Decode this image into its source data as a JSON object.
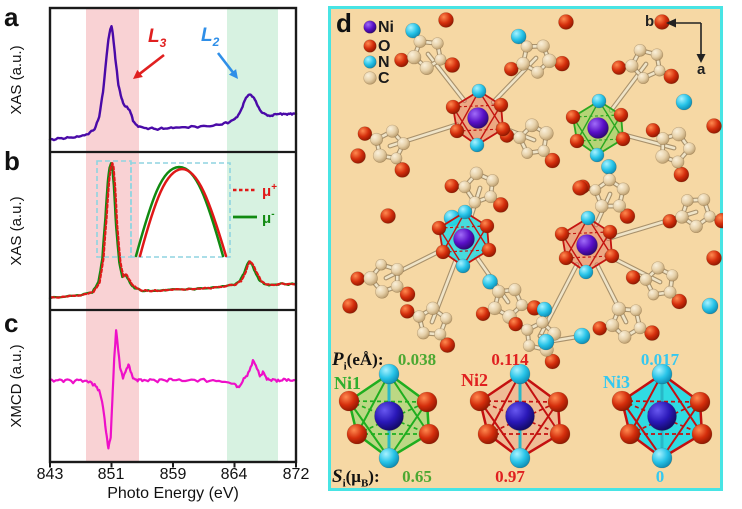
{
  "left_charts": {
    "panels": [
      {
        "letter": "a",
        "ylabel": "XAS (a.u.)"
      },
      {
        "letter": "b",
        "ylabel": "XAS (a.u.)"
      },
      {
        "letter": "c",
        "ylabel": "XMCD (a.u.)"
      }
    ],
    "xlabel": "Photo Energy (eV)",
    "xticks": [
      "843",
      "851",
      "859",
      "864",
      "872"
    ],
    "annotations": {
      "l3": {
        "base": "L",
        "sub": "3",
        "color": "#e02020"
      },
      "l2": {
        "base": "L",
        "sub": "2",
        "color": "#2f8fe8"
      }
    },
    "legend": {
      "mu_plus": {
        "base": "μ",
        "sup": "+",
        "color": "#e01818",
        "style": "dashed"
      },
      "mu_minus": {
        "base": "μ",
        "sup": "-",
        "color": "#118a11",
        "style": "solid"
      }
    }
  },
  "chart_data": [
    {
      "type": "line",
      "panel": "a",
      "ylabel": "XAS (a.u.)",
      "xlabel": "Photo Energy (eV)",
      "x_range": [
        843,
        872
      ],
      "xticks": [
        843,
        851,
        859,
        864,
        872
      ],
      "grid": false,
      "bands": [
        {
          "x": [
            847.6,
            854.7
          ],
          "color": "#f9d2d4",
          "label": "L3 region"
        },
        {
          "x": [
            863.3,
            869.9
          ],
          "color": "#d7f2e1",
          "label": "L2 region"
        }
      ],
      "series": [
        {
          "name": "XAS",
          "color": "#4a0aa8",
          "x": [
            843,
            844,
            845,
            846,
            847,
            848,
            848.8,
            849.4,
            849.9,
            850.3,
            850.6,
            850.85,
            851,
            851.2,
            851.5,
            851.9,
            852.3,
            852.7,
            853.1,
            853.4,
            853.8,
            854.3,
            855,
            856,
            857,
            858,
            859,
            860,
            861,
            862,
            863,
            863.6,
            864.2,
            864.8,
            865.3,
            865.7,
            866,
            866.4,
            866.9,
            867.4,
            868,
            868.6,
            869.3,
            870,
            870.7,
            871.3,
            872
          ],
          "y": [
            0.06,
            0.07,
            0.075,
            0.08,
            0.09,
            0.11,
            0.15,
            0.25,
            0.46,
            0.72,
            0.9,
            0.98,
            1.0,
            0.93,
            0.74,
            0.52,
            0.4,
            0.345,
            0.33,
            0.3,
            0.22,
            0.18,
            0.16,
            0.155,
            0.15,
            0.155,
            0.16,
            0.165,
            0.17,
            0.175,
            0.19,
            0.21,
            0.24,
            0.3,
            0.38,
            0.43,
            0.44,
            0.42,
            0.36,
            0.3,
            0.27,
            0.26,
            0.27,
            0.28,
            0.27,
            0.28,
            0.275
          ]
        }
      ]
    },
    {
      "type": "line",
      "panel": "b",
      "ylabel": "XAS (a.u.)",
      "xlabel": "Photo Energy (eV)",
      "x_range": [
        843,
        872
      ],
      "xticks": [
        843,
        851,
        859,
        864,
        872
      ],
      "grid": false,
      "legend_position": "right",
      "series": [
        {
          "name": "μ−",
          "color": "#118a11",
          "linestyle": "solid",
          "x": [
            843,
            845,
            847,
            848.5,
            849.3,
            849.8,
            850.2,
            850.5,
            850.75,
            850.95,
            851.1,
            851.3,
            851.6,
            852,
            852.4,
            852.8,
            853.2,
            853.6,
            854,
            855,
            856,
            857,
            858,
            859,
            860,
            861,
            862,
            863,
            864,
            864.7,
            865.2,
            865.6,
            865.9,
            866.3,
            866.8,
            867.3,
            868,
            869,
            870,
            871,
            872
          ],
          "y": [
            0.05,
            0.06,
            0.07,
            0.09,
            0.16,
            0.33,
            0.62,
            0.86,
            0.97,
            1.0,
            0.97,
            0.84,
            0.55,
            0.3,
            0.2,
            0.215,
            0.175,
            0.14,
            0.12,
            0.1,
            0.1,
            0.1,
            0.105,
            0.11,
            0.11,
            0.115,
            0.12,
            0.13,
            0.145,
            0.17,
            0.22,
            0.28,
            0.31,
            0.28,
            0.22,
            0.17,
            0.145,
            0.14,
            0.15,
            0.145,
            0.15
          ]
        },
        {
          "name": "μ+",
          "color": "#e01818",
          "linestyle": "dashed",
          "x": [
            843,
            845,
            847,
            848.5,
            849.3,
            849.8,
            850.2,
            850.5,
            850.75,
            850.95,
            851.1,
            851.3,
            851.6,
            852,
            852.4,
            852.8,
            853.2,
            853.6,
            854,
            855,
            856,
            857,
            858,
            859,
            860,
            861,
            862,
            863,
            864,
            864.7,
            865.2,
            865.6,
            865.9,
            866.3,
            866.8,
            867.3,
            868,
            869,
            870,
            871,
            872
          ],
          "y": [
            0.05,
            0.06,
            0.07,
            0.09,
            0.16,
            0.33,
            0.62,
            0.86,
            0.97,
            1.0,
            0.97,
            0.84,
            0.55,
            0.3,
            0.2,
            0.215,
            0.175,
            0.14,
            0.12,
            0.1,
            0.1,
            0.1,
            0.105,
            0.11,
            0.11,
            0.115,
            0.12,
            0.13,
            0.145,
            0.17,
            0.22,
            0.28,
            0.31,
            0.28,
            0.22,
            0.17,
            0.145,
            0.14,
            0.15,
            0.145,
            0.15
          ]
        }
      ],
      "inset": {
        "description": "zoom of L3 peak showing slight shift between μ+ and μ−"
      }
    },
    {
      "type": "line",
      "panel": "c",
      "ylabel": "XMCD (a.u.)",
      "xlabel": "Photo Energy (eV)",
      "x_range": [
        843,
        872
      ],
      "xticks": [
        843,
        851,
        859,
        864,
        872
      ],
      "grid": false,
      "series": [
        {
          "name": "XMCD",
          "color": "#ee10c8",
          "x": [
            843,
            844,
            845,
            846,
            847,
            848,
            848.8,
            849.4,
            849.9,
            850.3,
            850.6,
            850.9,
            851.1,
            851.35,
            851.6,
            851.85,
            852.1,
            852.5,
            852.9,
            853.2,
            853.5,
            853.9,
            854.4,
            855,
            856,
            857,
            858,
            859,
            860,
            861,
            862,
            863,
            864,
            864.6,
            865.2,
            865.8,
            866.4,
            866.9,
            867.3,
            867.7,
            868.2,
            868.8,
            869.5,
            870.2,
            871,
            872
          ],
          "y": [
            0.55,
            0.545,
            0.55,
            0.54,
            0.55,
            0.535,
            0.52,
            0.47,
            0.37,
            0.18,
            0.07,
            0.14,
            0.4,
            0.7,
            0.9,
            0.78,
            0.63,
            0.57,
            0.62,
            0.66,
            0.6,
            0.56,
            0.55,
            0.545,
            0.55,
            0.545,
            0.55,
            0.55,
            0.545,
            0.55,
            0.545,
            0.54,
            0.52,
            0.5,
            0.55,
            0.6,
            0.68,
            0.64,
            0.58,
            0.6,
            0.56,
            0.55,
            0.545,
            0.55,
            0.55,
            0.545
          ]
        }
      ]
    }
  ],
  "panel_d": {
    "letter": "d",
    "background": "#f6d8a4",
    "border_color": "#48e4e4",
    "atom_legend": [
      {
        "label": "Ni",
        "color": "#5a10c8"
      },
      {
        "label": "O",
        "color": "#d42e0c"
      },
      {
        "label": "N",
        "color": "#28c4e8"
      },
      {
        "label": "C",
        "color": "#e6d0a8"
      }
    ],
    "axis_arrows": {
      "b": "b",
      "a": "a"
    },
    "pi_row": {
      "symbol": "P",
      "sub": "i",
      "unit": "(eÅ):",
      "values": [
        {
          "text": "0.038",
          "color": "#4ca832"
        },
        {
          "text": "0.114",
          "color": "#e02020"
        },
        {
          "text": "0.017",
          "color": "#35c8f0"
        }
      ]
    },
    "ni_sites": [
      {
        "label": "Ni1",
        "color": "#2fae2f"
      },
      {
        "label": "Ni2",
        "color": "#e02020"
      },
      {
        "label": "Ni3",
        "color": "#35c8f0"
      }
    ],
    "si_row": {
      "symbol": "S",
      "sub": "i",
      "unit_pre": "(μ",
      "unit_sub": "B",
      "unit_post": "):",
      "values": [
        {
          "text": "0.65",
          "color": "#4ca832"
        },
        {
          "text": "0.97",
          "color": "#e02020"
        },
        {
          "text": "0",
          "color": "#35c8f0"
        }
      ]
    }
  }
}
